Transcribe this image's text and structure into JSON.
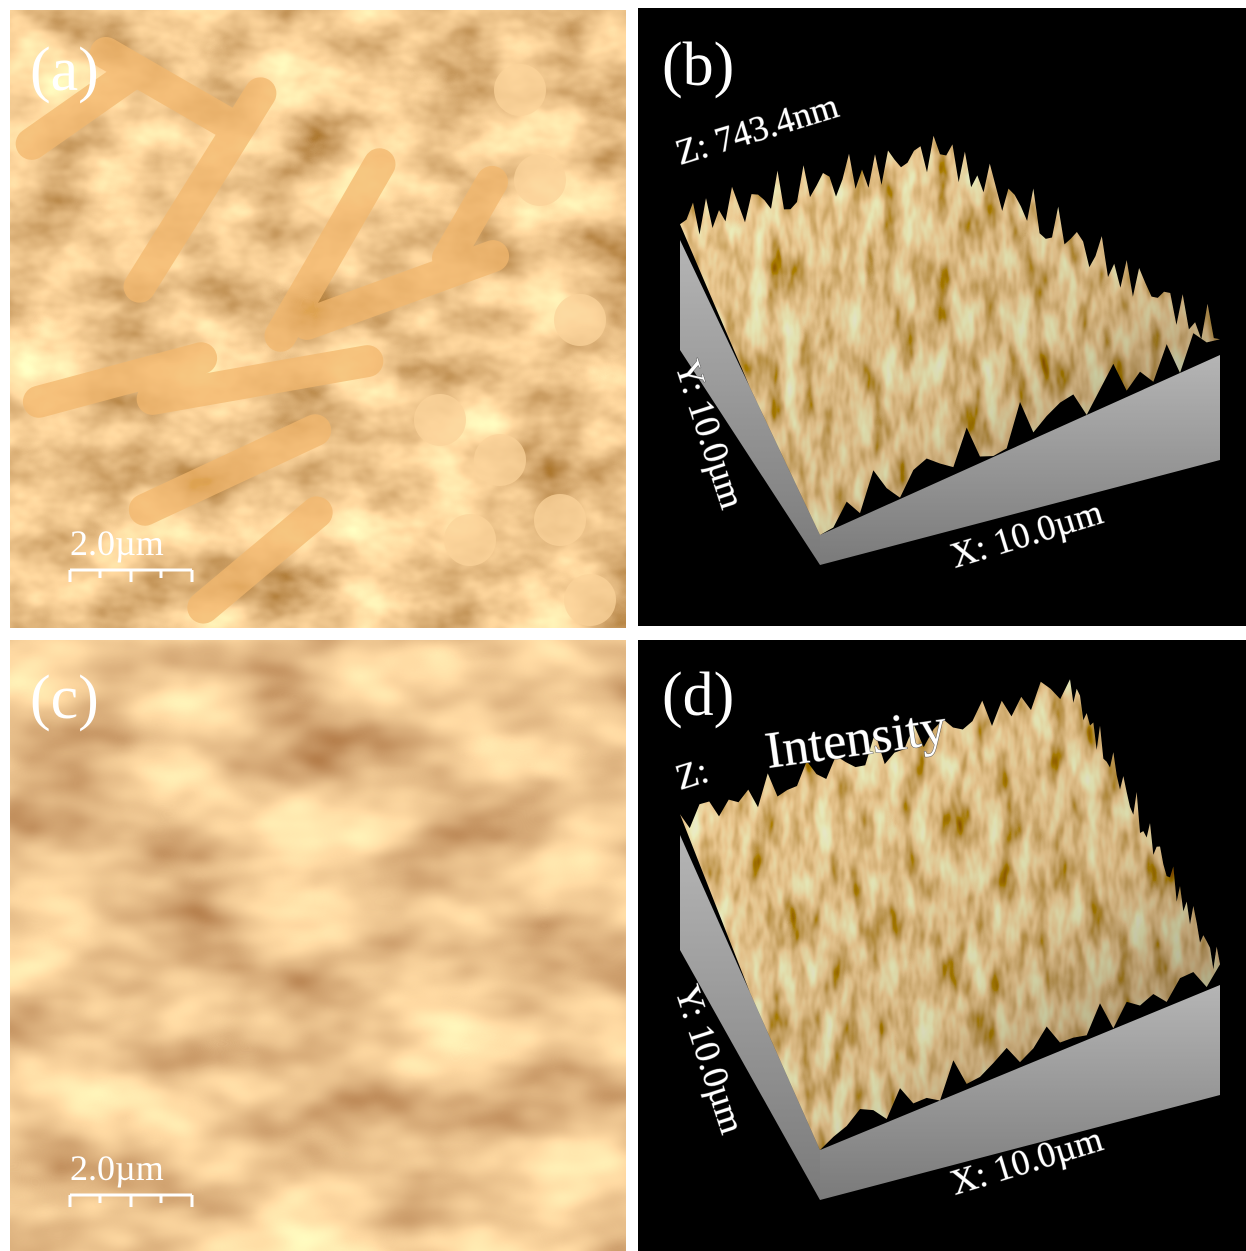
{
  "panels": [
    {
      "label": "(a)",
      "scale_bar": "2.0µm"
    },
    {
      "label": "(b)",
      "z_axis": "Z: 743.4nm",
      "y_axis": "Y: 10.0µm",
      "x_axis": "X: 10.0µm"
    },
    {
      "label": "(c)",
      "scale_bar": "2.0µm"
    },
    {
      "label": "(d)",
      "z_axis": "Z:",
      "z_title": "Intensity",
      "y_axis": "Y: 10.0µm",
      "x_axis": "X: 10.0µm"
    }
  ]
}
